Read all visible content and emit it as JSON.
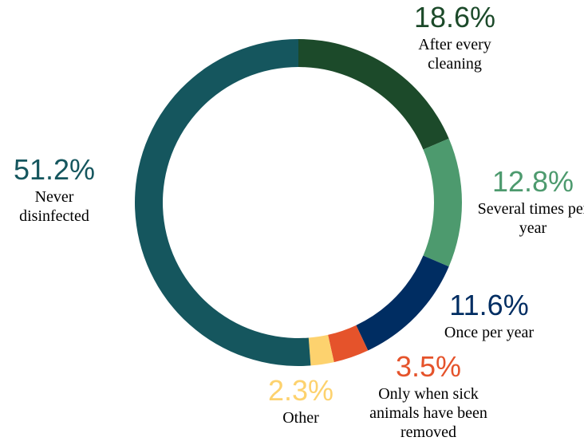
{
  "chart_data": {
    "type": "donut",
    "categories": [
      "After every cleaning",
      "Several times per year",
      "Once per year",
      "Only when sick animals have been removed",
      "Other",
      "Never disinfected"
    ],
    "values": [
      18.6,
      12.8,
      11.6,
      3.5,
      2.3,
      51.2
    ],
    "value_labels": [
      "18.6%",
      "12.8%",
      "11.6%",
      "3.5%",
      "2.3%",
      "51.2%"
    ],
    "colors": [
      "#1c4a2a",
      "#4d9a6e",
      "#002d62",
      "#e5532b",
      "#fdd26e",
      "#15565e"
    ]
  }
}
